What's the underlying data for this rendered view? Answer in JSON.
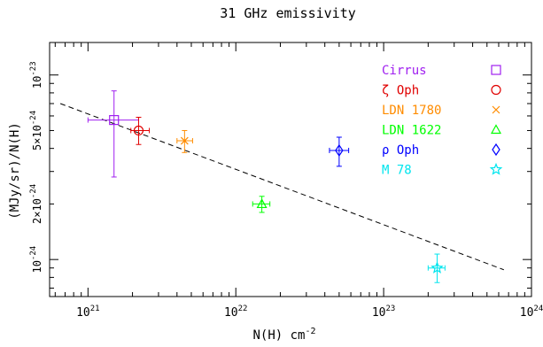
{
  "chart_data": {
    "type": "scatter",
    "title": "31 GHz emissivity",
    "xlabel": "N(H) cm",
    "xlabel_exp": "-2",
    "ylabel": "(MJy/sr)/N(H)",
    "x_scale": "log",
    "y_scale": "log",
    "xlim": [
      5.5e+20,
      1e+24
    ],
    "ylim": [
      6.3e-25,
      1.5e-23
    ],
    "grid": false,
    "legend_position": "top-right",
    "x_ticks": [
      {
        "value": 1e+21,
        "base": "10",
        "exp": "21"
      },
      {
        "value": 1e+22,
        "base": "10",
        "exp": "22"
      },
      {
        "value": 1e+23,
        "base": "10",
        "exp": "23"
      },
      {
        "value": 1e+24,
        "base": "10",
        "exp": "24"
      }
    ],
    "y_ticks": [
      {
        "value": 1e-24,
        "base": "10",
        "exp": "-24",
        "prefix": ""
      },
      {
        "value": 2e-24,
        "base": "10",
        "exp": "-24",
        "prefix": "2×"
      },
      {
        "value": 5e-24,
        "base": "10",
        "exp": "-24",
        "prefix": "5×"
      },
      {
        "value": 1e-23,
        "base": "10",
        "exp": "-23",
        "prefix": ""
      }
    ],
    "series": [
      {
        "name": "Cirrus",
        "marker": "square",
        "color": "#a020f0",
        "x": 1.5e+21,
        "y": 5.7e-24,
        "xerr": [
          1e+21,
          2.2e+21
        ],
        "yerr": [
          2.8e-24,
          8.2e-24
        ]
      },
      {
        "name": "ζ Oph",
        "marker": "circle",
        "color": "#e00000",
        "x": 2.2e+21,
        "y": 5e-24,
        "xerr": [
          1.95e+21,
          2.6e+21
        ],
        "yerr": [
          4.2e-24,
          5.9e-24
        ]
      },
      {
        "name": "LDN 1780",
        "marker": "x",
        "color": "#ff8c00",
        "x": 4.5e+21,
        "y": 4.4e-24,
        "xerr": [
          4e+21,
          5.1e+21
        ],
        "yerr": [
          3.8e-24,
          5e-24
        ]
      },
      {
        "name": "LDN 1622",
        "marker": "triangle",
        "color": "#00ff00",
        "x": 1.5e+22,
        "y": 2e-24,
        "xerr": [
          1.3e+22,
          1.7e+22
        ],
        "yerr": [
          1.8e-24,
          2.2e-24
        ]
      },
      {
        "name": "ρ Oph",
        "marker": "diamond",
        "color": "#0000ff",
        "x": 5e+22,
        "y": 3.9e-24,
        "xerr": [
          4.3e+22,
          5.8e+22
        ],
        "yerr": [
          3.2e-24,
          4.6e-24
        ]
      },
      {
        "name": "M 78",
        "marker": "star",
        "color": "#00e5ee",
        "x": 2.3e+23,
        "y": 9e-25,
        "xerr": [
          2e+23,
          2.6e+23
        ],
        "yerr": [
          7.5e-25,
          1.07e-24
        ]
      }
    ],
    "fit_line": {
      "style": "dashed",
      "color": "#000000",
      "x": [
        6.5e+20,
        6.5e+23
      ],
      "y": [
        7e-24,
        8.8e-25
      ]
    }
  }
}
